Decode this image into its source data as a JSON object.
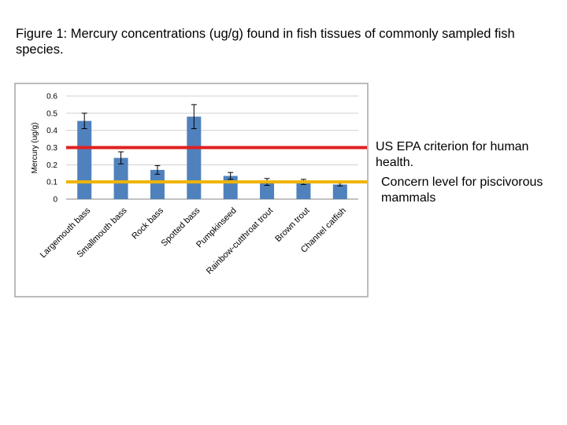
{
  "caption": "Figure 1: Mercury concentrations (ug/g) found in fish tissues of commonly sampled fish species.",
  "reference_lines": [
    {
      "label": "US EPA criterion for human health.",
      "value": 0.3,
      "color": "#e02020"
    },
    {
      "label": "Concern level for piscivorous mammals",
      "value": 0.1,
      "color": "#f0b400"
    }
  ],
  "chart_data": {
    "type": "bar",
    "title": "",
    "xlabel": "",
    "ylabel": "Mercury (ug/g)",
    "ylim": [
      0,
      0.6
    ],
    "yticks": [
      "0",
      "0.1",
      "0.2",
      "0.3",
      "0.4",
      "0.5",
      "0.6"
    ],
    "grid": true,
    "bar_color": "#4f81bd",
    "categories": [
      "Largemouth bass",
      "Smallmouth bass",
      "Rock bass",
      "Spotted bass",
      "Pumpkinseed",
      "Rainbow-cutthroat trout",
      "Brown trout",
      "Channel catfish"
    ],
    "values": [
      0.455,
      0.24,
      0.17,
      0.48,
      0.135,
      0.1,
      0.1,
      0.085
    ],
    "errors": [
      0.045,
      0.035,
      0.025,
      0.07,
      0.02,
      0.02,
      0.015,
      0.008
    ]
  }
}
